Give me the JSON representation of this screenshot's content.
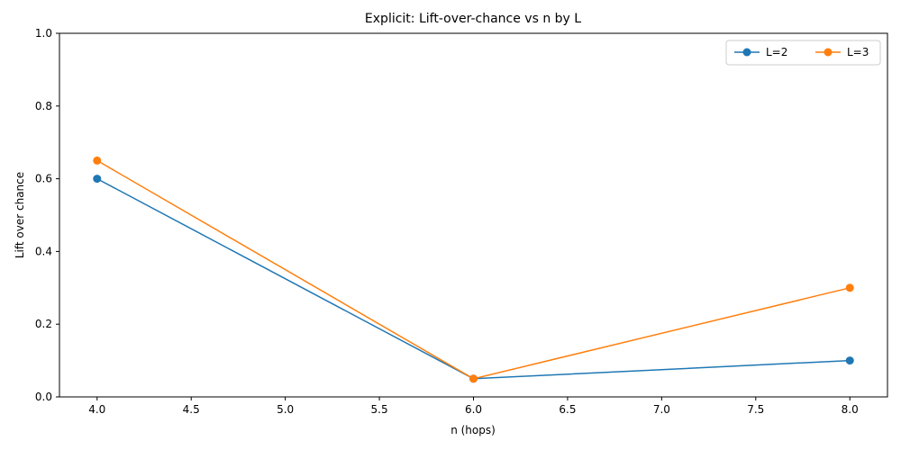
{
  "chart_data": {
    "type": "line",
    "title": "Explicit: Lift-over-chance vs n by L",
    "xlabel": "n (hops)",
    "ylabel": "Lift over chance",
    "xlim": [
      3.8,
      8.2
    ],
    "ylim": [
      0.0,
      1.0
    ],
    "xticks": [
      4.0,
      4.5,
      5.0,
      5.5,
      6.0,
      6.5,
      7.0,
      7.5,
      8.0
    ],
    "xtick_labels": [
      "4.0",
      "4.5",
      "5.0",
      "5.5",
      "6.0",
      "6.5",
      "7.0",
      "7.5",
      "8.0"
    ],
    "yticks": [
      0.0,
      0.2,
      0.4,
      0.6,
      0.8,
      1.0
    ],
    "ytick_labels": [
      "0.0",
      "0.2",
      "0.4",
      "0.6",
      "0.8",
      "1.0"
    ],
    "grid": false,
    "legend_position": "top-right",
    "x": [
      4,
      6,
      8
    ],
    "series": [
      {
        "name": "L=2",
        "values": [
          0.6,
          0.05,
          0.1
        ],
        "color": "#1f77b4"
      },
      {
        "name": "L=3",
        "values": [
          0.65,
          0.05,
          0.3
        ],
        "color": "#ff7f0e"
      }
    ]
  }
}
